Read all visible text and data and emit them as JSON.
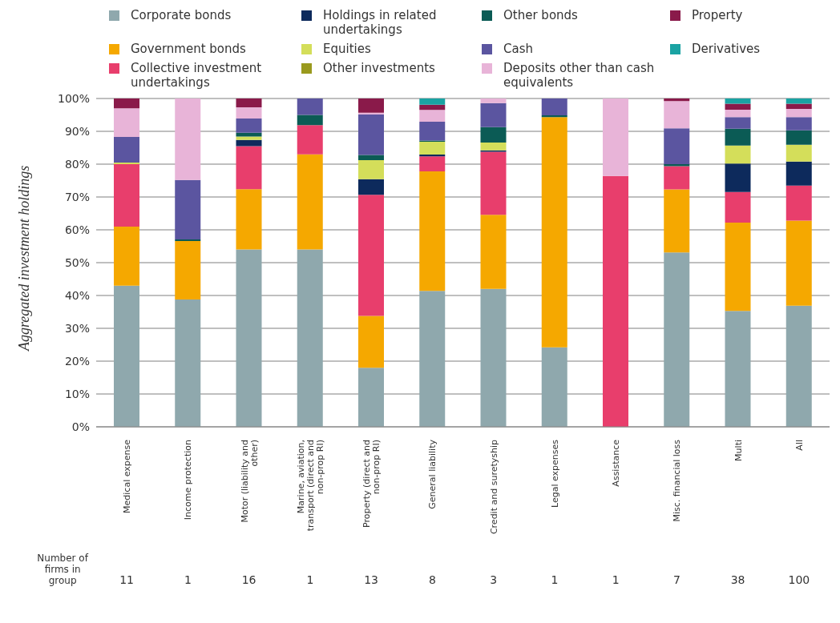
{
  "chart_data": {
    "type": "bar",
    "stacked": true,
    "ylabel": "Aggregated investment holdings",
    "categories": [
      "Medical expense",
      "Income protection",
      "Motor (liability and other)",
      "Marine, aviation, transport (direct and non-prop RI)",
      "Property (direct and non-prop RI)",
      "General liability",
      "Credit and suretyship",
      "Legal expenses",
      "Assistance",
      "Misc. financial loss",
      "Multi",
      "All"
    ],
    "series": [
      {
        "name": "Corporate bonds",
        "color": "#8fa8ad",
        "values": [
          43,
          38.8,
          54,
          54,
          18,
          41.4,
          42,
          24.2,
          0,
          53.1,
          35.3,
          36.9
        ]
      },
      {
        "name": "Government bonds",
        "color": "#f5a800",
        "values": [
          18,
          17.8,
          18.4,
          29,
          15.8,
          36.4,
          22.6,
          70.1,
          0,
          19.2,
          26.9,
          25.9
        ]
      },
      {
        "name": "Collective investment undertakings",
        "color": "#e83e6c",
        "values": [
          19,
          0,
          13.1,
          8.9,
          36.9,
          4.6,
          19.2,
          0,
          76.4,
          7.1,
          9.3,
          10.7
        ]
      },
      {
        "name": "Holdings in related undertakings",
        "color": "#0d2a5c",
        "values": [
          0,
          0,
          1.9,
          0,
          4.7,
          0.5,
          0.4,
          0,
          0,
          0,
          8.7,
          7.3
        ]
      },
      {
        "name": "Equities",
        "color": "#d4de5a",
        "values": [
          0.5,
          0,
          1,
          0,
          5.8,
          3.9,
          2.4,
          0,
          0,
          0,
          5.5,
          5.1
        ]
      },
      {
        "name": "Other investments",
        "color": "#9a9a1e",
        "values": [
          0,
          0,
          0,
          0,
          0,
          0,
          0,
          0,
          0,
          0,
          0,
          0
        ]
      },
      {
        "name": "Other bonds",
        "color": "#0b5b55",
        "values": [
          0,
          0.5,
          1.2,
          3.1,
          1.6,
          0.4,
          4.7,
          0.6,
          0,
          0.6,
          5.1,
          4.4
        ]
      },
      {
        "name": "Cash",
        "color": "#5b55a0",
        "values": [
          7.8,
          18.1,
          4.3,
          5,
          12.3,
          5.7,
          7.3,
          5.1,
          0,
          10.9,
          3.5,
          4
        ]
      },
      {
        "name": "Deposits other than cash equivalents",
        "color": "#e8b4d8",
        "values": [
          8.7,
          24.8,
          3.4,
          0,
          0.6,
          3.6,
          1.4,
          0,
          23.6,
          8.3,
          2.3,
          2.5
        ]
      },
      {
        "name": "Property",
        "color": "#8a1a4a",
        "values": [
          3,
          0,
          2.7,
          0,
          4.3,
          1.6,
          0,
          0,
          0,
          0.8,
          1.8,
          1.6
        ]
      },
      {
        "name": "Derivatives",
        "color": "#1aa3a3",
        "values": [
          0,
          0,
          0,
          0,
          0,
          1.9,
          0,
          0,
          0,
          0,
          1.6,
          1.6
        ]
      }
    ],
    "ylim": [
      0,
      100
    ],
    "yticks": [
      {
        "value": 0,
        "label": "0%"
      },
      {
        "value": 10,
        "label": "10%"
      },
      {
        "value": 20,
        "label": "20%"
      },
      {
        "value": 30,
        "label": "30%"
      },
      {
        "value": 40,
        "label": "40%"
      },
      {
        "value": 50,
        "label": "50%"
      },
      {
        "value": 60,
        "label": "60%"
      },
      {
        "value": 70,
        "label": "70%"
      },
      {
        "value": 80,
        "label": "80%"
      },
      {
        "value": 90,
        "label": "90%"
      },
      {
        "value": 100,
        "label": "100%"
      }
    ],
    "grid": "y",
    "legend": "top",
    "annotations": [
      "Number of firms in group",
      "11",
      "1",
      "16",
      "1",
      "13",
      "8",
      "3",
      "1",
      "1",
      "7",
      "38",
      "100"
    ]
  }
}
